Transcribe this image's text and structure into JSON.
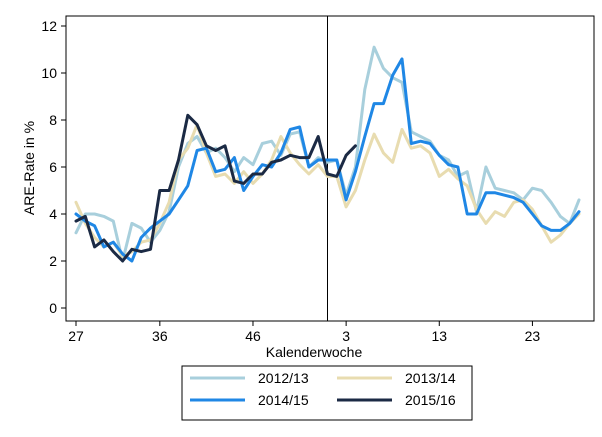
{
  "chart_data": {
    "type": "line",
    "title": "",
    "xlabel": "Kalenderwoche",
    "ylabel": "ARE-Rate in %",
    "ylim": [
      0,
      12
    ],
    "yticks": [
      0,
      2,
      4,
      6,
      8,
      10,
      12
    ],
    "x_index_range": [
      0,
      54
    ],
    "x_ticks": [
      {
        "index": 0,
        "label": "27"
      },
      {
        "index": 9,
        "label": "36"
      },
      {
        "index": 19,
        "label": "46"
      },
      {
        "index": 29,
        "label": "3"
      },
      {
        "index": 39,
        "label": "13"
      },
      {
        "index": 49,
        "label": "23"
      }
    ],
    "week_labels_order": "index 0 = week 27; weeks 27-52 then 1-26",
    "reference_line_index": 27,
    "series": [
      {
        "name": "2012/13",
        "color": "#a8cfdc",
        "values": [
          3.2,
          4.0,
          4.0,
          3.9,
          3.7,
          2.0,
          3.6,
          3.4,
          2.8,
          3.3,
          4.1,
          6.0,
          7.0,
          7.3,
          6.6,
          6.8,
          6.4,
          5.8,
          6.4,
          6.1,
          7.0,
          7.1,
          6.5,
          7.4,
          7.5,
          6.0,
          6.4,
          6.2,
          6.3,
          4.8,
          6.0,
          9.3,
          11.1,
          10.2,
          9.8,
          9.6,
          7.5,
          7.3,
          7.1,
          6.5,
          6.3,
          5.6,
          5.8,
          4.1,
          6.0,
          5.1,
          5.0,
          4.9,
          4.6,
          5.1,
          5.0,
          4.5,
          3.9,
          3.6,
          4.6
        ]
      },
      {
        "name": "2013/14",
        "color": "#e8dcb0",
        "values": [
          4.5,
          3.6,
          3.0,
          2.6,
          2.8,
          2.2,
          2.4,
          2.8,
          2.9,
          3.6,
          4.5,
          6.3,
          6.8,
          7.8,
          6.6,
          5.6,
          5.7,
          5.3,
          5.8,
          5.3,
          5.7,
          6.3,
          7.3,
          6.6,
          6.1,
          5.7,
          6.1,
          5.6,
          5.6,
          4.3,
          5.0,
          6.3,
          7.4,
          6.6,
          6.2,
          7.6,
          6.8,
          6.9,
          6.6,
          5.6,
          5.9,
          5.5,
          5.2,
          4.2,
          3.6,
          4.1,
          3.9,
          4.5,
          4.6,
          4.2,
          3.5,
          2.8,
          3.1,
          3.6,
          4.0
        ]
      },
      {
        "name": "2014/15",
        "color": "#1f87e5",
        "values": [
          4.0,
          3.7,
          3.5,
          2.6,
          2.8,
          2.3,
          2.0,
          3.0,
          3.4,
          3.7,
          4.0,
          4.6,
          5.2,
          6.7,
          6.8,
          5.8,
          5.9,
          6.4,
          5.0,
          5.6,
          6.1,
          6.0,
          6.6,
          7.6,
          7.7,
          6.0,
          6.3,
          6.3,
          6.3,
          4.6,
          5.8,
          7.3,
          8.7,
          8.7,
          9.9,
          10.6,
          7.0,
          7.1,
          7.0,
          6.5,
          6.1,
          6.0,
          4.0,
          4.0,
          4.9,
          4.9,
          4.8,
          4.7,
          4.5,
          4.0,
          3.5,
          3.3,
          3.3,
          3.6,
          4.1
        ]
      },
      {
        "name": "2015/16",
        "color": "#1b2a44",
        "values": [
          3.7,
          3.9,
          2.6,
          2.9,
          2.4,
          2.0,
          2.5,
          2.4,
          2.5,
          5.0,
          5.0,
          6.3,
          8.2,
          7.8,
          6.9,
          6.7,
          6.9,
          5.4,
          5.3,
          5.7,
          5.7,
          6.2,
          6.3,
          6.5,
          6.4,
          6.4,
          7.3,
          5.7,
          5.6,
          6.5,
          6.9
        ]
      }
    ],
    "legend": {
      "placement": "bottom",
      "columns": 2,
      "order": [
        "2012/13",
        "2013/14",
        "2014/15",
        "2015/16"
      ]
    }
  }
}
